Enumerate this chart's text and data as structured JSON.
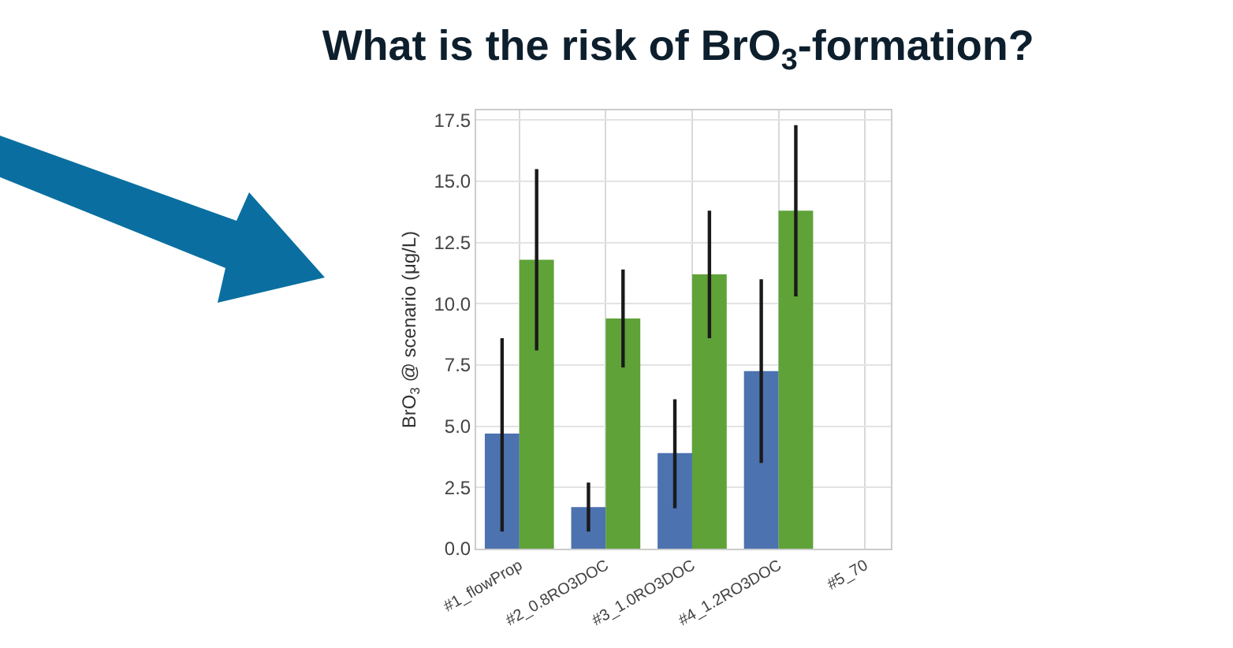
{
  "chart_data": {
    "type": "bar",
    "title": "What is the risk of BrO$_{3}$-formation?",
    "ylabel": "BrO$_{3}$ @ scenario (μg/L)",
    "categories": [
      "#1_flowProp",
      "#2_0.8RO3DOC",
      "#3_1.0RO3DOC",
      "#4_1.2RO3DOC",
      "#5_70"
    ],
    "series": [
      {
        "color": "#4c72b0",
        "values": [
          4.7,
          1.7,
          3.9,
          7.25,
          null
        ],
        "errors": [
          [
            0.7,
            8.6
          ],
          [
            0.7,
            2.7
          ],
          [
            1.65,
            6.1
          ],
          [
            3.5,
            11.0
          ],
          null
        ]
      },
      {
        "color": "#5fa238",
        "values": [
          11.8,
          9.4,
          11.2,
          13.8,
          null
        ],
        "errors": [
          [
            8.1,
            15.5
          ],
          [
            7.4,
            11.4
          ],
          [
            8.6,
            13.8
          ],
          [
            10.3,
            17.3
          ],
          null
        ]
      }
    ],
    "ylim": [
      0,
      17.9
    ],
    "yticks": [
      {
        "value": 0,
        "label": "0.0"
      },
      2.5,
      {
        "value": 5,
        "label": "5.0"
      },
      7.5,
      {
        "value": 10,
        "label": "10.0"
      },
      12.5,
      {
        "value": 15,
        "label": "15.0"
      },
      17.5
    ],
    "grid": true
  }
}
